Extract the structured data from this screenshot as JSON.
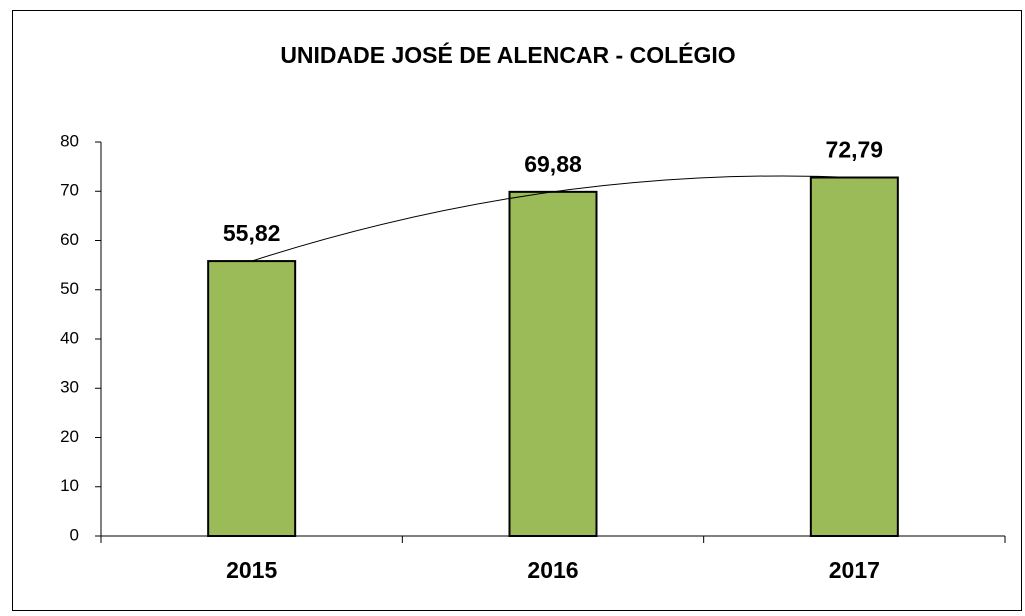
{
  "chart_data": {
    "type": "bar",
    "title": "UNIDADE JOSÉ DE ALENCAR - COLÉGIO",
    "categories": [
      "2015",
      "2016",
      "2017"
    ],
    "values": [
      55.82,
      69.88,
      72.79
    ],
    "value_labels": [
      "55,82",
      "69,88",
      "72,79"
    ],
    "color": "#9bbb59",
    "ylim": [
      0,
      80
    ],
    "yticks": [
      0,
      10,
      20,
      30,
      40,
      50,
      60,
      70,
      80
    ],
    "trendline": true
  }
}
